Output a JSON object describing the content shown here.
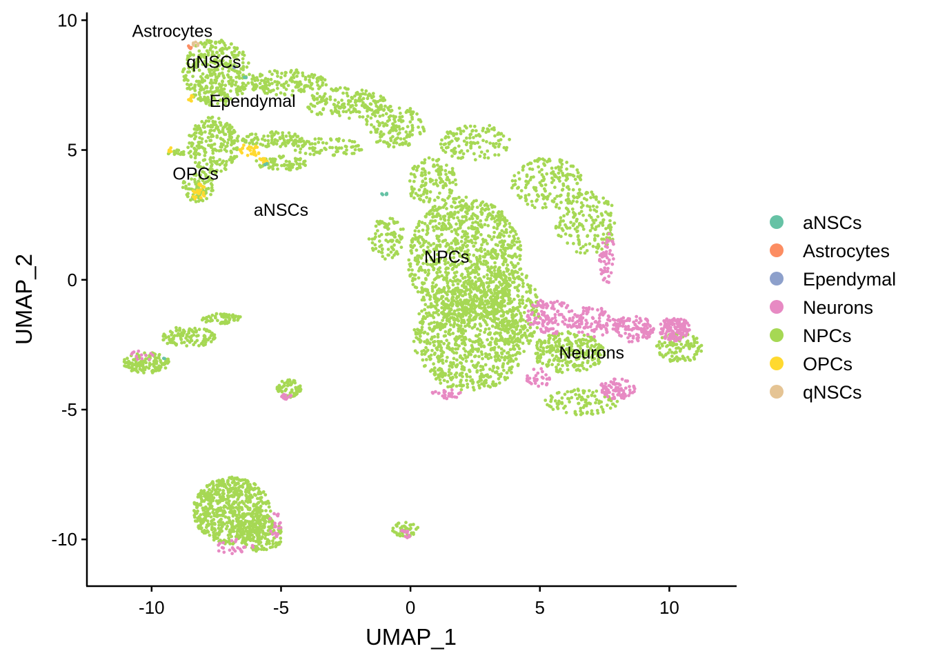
{
  "chart_data": {
    "type": "scatter",
    "xlabel": "UMAP_1",
    "ylabel": "UMAP_2",
    "xlim": [
      -12.5,
      12.6
    ],
    "ylim": [
      -11.8,
      10.3
    ],
    "x_ticks": [
      {
        "value": -10,
        "label": "-10"
      },
      {
        "value": -5,
        "label": "-5"
      },
      {
        "value": 0,
        "label": "0"
      },
      {
        "value": 5,
        "label": "5"
      },
      {
        "value": 10,
        "label": "10"
      }
    ],
    "y_ticks": [
      {
        "value": 10,
        "label": "10"
      },
      {
        "value": 5,
        "label": "5"
      },
      {
        "value": 0,
        "label": "0"
      },
      {
        "value": -5,
        "label": "-5"
      },
      {
        "value": -10,
        "label": "-10"
      }
    ],
    "grid": false,
    "legend_position": "right",
    "legend": [
      {
        "name": "aNSCs",
        "color": "#66C2A5"
      },
      {
        "name": "Astrocytes",
        "color": "#FC8D62"
      },
      {
        "name": "Ependymal",
        "color": "#8DA0CB"
      },
      {
        "name": "Neurons",
        "color": "#E78AC3"
      },
      {
        "name": "NPCs",
        "color": "#A6D854"
      },
      {
        "name": "OPCs",
        "color": "#FFD92F"
      },
      {
        "name": "qNSCs",
        "color": "#E5C494"
      }
    ],
    "cluster_labels": [
      {
        "text": "Astrocytes",
        "x": -9.2,
        "y": 9.6
      },
      {
        "text": "qNSCs",
        "x": -7.6,
        "y": 8.4
      },
      {
        "text": "Ependymal",
        "x": -6.1,
        "y": 6.9
      },
      {
        "text": "OPCs",
        "x": -8.3,
        "y": 4.1
      },
      {
        "text": "aNSCs",
        "x": -5.0,
        "y": 2.7
      },
      {
        "text": "NPCs",
        "x": 1.4,
        "y": 0.9
      },
      {
        "text": "Neurons",
        "x": 7.0,
        "y": -2.8
      }
    ],
    "series": [
      {
        "name": "NPCs",
        "color": "#A6D854",
        "regions": [
          {
            "cx": -7.5,
            "cy": 8.0,
            "rx": 1.3,
            "ry": 1.3,
            "n": 360
          },
          {
            "cx": -4.8,
            "cy": 7.6,
            "rx": 1.6,
            "ry": 0.5,
            "n": 150
          },
          {
            "cx": -2.5,
            "cy": 6.8,
            "rx": 1.6,
            "ry": 0.6,
            "n": 170
          },
          {
            "cx": -0.6,
            "cy": 5.9,
            "rx": 1.2,
            "ry": 0.8,
            "n": 150
          },
          {
            "cx": -7.6,
            "cy": 5.2,
            "rx": 1.0,
            "ry": 1.1,
            "n": 230
          },
          {
            "cx": -8.2,
            "cy": 3.6,
            "rx": 0.6,
            "ry": 0.6,
            "n": 80
          },
          {
            "cx": -5.3,
            "cy": 5.4,
            "rx": 1.2,
            "ry": 0.3,
            "n": 90
          },
          {
            "cx": -5.0,
            "cy": 4.5,
            "rx": 1.0,
            "ry": 0.3,
            "n": 70
          },
          {
            "cx": -3.2,
            "cy": 5.1,
            "rx": 1.4,
            "ry": 0.35,
            "n": 80
          },
          {
            "cx": -9.0,
            "cy": 4.9,
            "rx": 0.4,
            "ry": 0.1,
            "n": 15
          },
          {
            "cx": 2.5,
            "cy": 5.3,
            "rx": 1.4,
            "ry": 0.7,
            "n": 120
          },
          {
            "cx": 5.3,
            "cy": 3.7,
            "rx": 1.4,
            "ry": 1.0,
            "n": 170
          },
          {
            "cx": 6.8,
            "cy": 2.2,
            "rx": 1.2,
            "ry": 1.2,
            "n": 170
          },
          {
            "cx": 0.8,
            "cy": 3.8,
            "rx": 1.0,
            "ry": 0.9,
            "n": 130
          },
          {
            "cx": -0.9,
            "cy": 1.6,
            "rx": 0.7,
            "ry": 0.8,
            "n": 90
          },
          {
            "cx": 2.1,
            "cy": 0.8,
            "rx": 2.2,
            "ry": 2.4,
            "n": 1000
          },
          {
            "cx": 2.3,
            "cy": -2.2,
            "rx": 2.2,
            "ry": 2.1,
            "n": 850
          },
          {
            "cx": 4.1,
            "cy": -1.2,
            "rx": 0.9,
            "ry": 1.5,
            "n": 200
          },
          {
            "cx": 6.1,
            "cy": -2.8,
            "rx": 1.4,
            "ry": 0.8,
            "n": 250
          },
          {
            "cx": 6.6,
            "cy": -4.7,
            "rx": 1.4,
            "ry": 0.5,
            "n": 100
          },
          {
            "cx": 10.4,
            "cy": -2.6,
            "rx": 0.9,
            "ry": 0.6,
            "n": 100
          },
          {
            "cx": -10.2,
            "cy": -3.2,
            "rx": 0.9,
            "ry": 0.4,
            "n": 130
          },
          {
            "cx": -8.6,
            "cy": -2.2,
            "rx": 1.1,
            "ry": 0.4,
            "n": 110
          },
          {
            "cx": -7.3,
            "cy": -1.5,
            "rx": 0.8,
            "ry": 0.2,
            "n": 60
          },
          {
            "cx": -4.7,
            "cy": -4.2,
            "rx": 0.5,
            "ry": 0.35,
            "n": 60
          },
          {
            "cx": -6.9,
            "cy": -8.9,
            "rx": 1.5,
            "ry": 1.3,
            "n": 650
          },
          {
            "cx": -5.8,
            "cy": -9.8,
            "rx": 0.9,
            "ry": 0.7,
            "n": 180
          },
          {
            "cx": -0.2,
            "cy": -9.6,
            "rx": 0.5,
            "ry": 0.3,
            "n": 40
          }
        ]
      },
      {
        "name": "Neurons",
        "color": "#E78AC3",
        "regions": [
          {
            "cx": 5.4,
            "cy": -1.4,
            "rx": 0.9,
            "ry": 0.7,
            "n": 110
          },
          {
            "cx": 7.6,
            "cy": 0.8,
            "rx": 0.3,
            "ry": 1.0,
            "n": 50
          },
          {
            "cx": 7.0,
            "cy": -1.6,
            "rx": 0.9,
            "ry": 0.6,
            "n": 90
          },
          {
            "cx": 8.6,
            "cy": -1.9,
            "rx": 0.8,
            "ry": 0.5,
            "n": 110
          },
          {
            "cx": 10.2,
            "cy": -1.9,
            "rx": 0.6,
            "ry": 0.45,
            "n": 140
          },
          {
            "cx": 8.0,
            "cy": -4.2,
            "rx": 0.7,
            "ry": 0.4,
            "n": 80
          },
          {
            "cx": 4.9,
            "cy": -3.8,
            "rx": 0.5,
            "ry": 0.4,
            "n": 30
          },
          {
            "cx": 1.4,
            "cy": -4.4,
            "rx": 0.6,
            "ry": 0.2,
            "n": 25
          },
          {
            "cx": -4.8,
            "cy": -4.5,
            "rx": 0.2,
            "ry": 0.1,
            "n": 12
          },
          {
            "cx": -6.8,
            "cy": -10.3,
            "rx": 0.8,
            "ry": 0.3,
            "n": 25
          },
          {
            "cx": -5.3,
            "cy": -9.4,
            "rx": 0.3,
            "ry": 0.6,
            "n": 20
          },
          {
            "cx": -10.3,
            "cy": -2.9,
            "rx": 0.5,
            "ry": 0.2,
            "n": 12
          },
          {
            "cx": -0.2,
            "cy": -9.8,
            "rx": 0.3,
            "ry": 0.2,
            "n": 10
          }
        ]
      },
      {
        "name": "OPCs",
        "color": "#FFD92F",
        "regions": [
          {
            "cx": -8.2,
            "cy": 3.4,
            "rx": 0.3,
            "ry": 0.3,
            "n": 25
          },
          {
            "cx": -6.2,
            "cy": 5.0,
            "rx": 0.4,
            "ry": 0.25,
            "n": 25
          },
          {
            "cx": -5.7,
            "cy": 4.6,
            "rx": 0.2,
            "ry": 0.1,
            "n": 8
          },
          {
            "cx": -8.5,
            "cy": 7.0,
            "rx": 0.1,
            "ry": 0.2,
            "n": 6
          },
          {
            "cx": -9.3,
            "cy": 5.0,
            "rx": 0.15,
            "ry": 0.1,
            "n": 4
          }
        ]
      },
      {
        "name": "aNSCs",
        "color": "#66C2A5",
        "regions": [
          {
            "cx": -1.0,
            "cy": 3.3,
            "rx": 0.15,
            "ry": 0.05,
            "n": 6
          },
          {
            "cx": -5.6,
            "cy": 4.5,
            "rx": 0.1,
            "ry": 0.1,
            "n": 3
          },
          {
            "cx": -6.4,
            "cy": 7.8,
            "rx": 0.1,
            "ry": 0.1,
            "n": 3
          },
          {
            "cx": -9.5,
            "cy": -3.0,
            "rx": 0.05,
            "ry": 0.05,
            "n": 2
          }
        ]
      },
      {
        "name": "Astrocytes",
        "color": "#FC8D62",
        "regions": [
          {
            "cx": -8.5,
            "cy": 9.0,
            "rx": 0.1,
            "ry": 0.1,
            "n": 4
          }
        ]
      },
      {
        "name": "Ependymal",
        "color": "#8DA0CB",
        "regions": [
          {
            "cx": -6.8,
            "cy": 8.2,
            "rx": 0.1,
            "ry": 0.1,
            "n": 2
          }
        ]
      },
      {
        "name": "qNSCs",
        "color": "#E5C494",
        "regions": [
          {
            "cx": -8.3,
            "cy": 9.1,
            "rx": 0.15,
            "ry": 0.1,
            "n": 6
          }
        ]
      }
    ]
  }
}
